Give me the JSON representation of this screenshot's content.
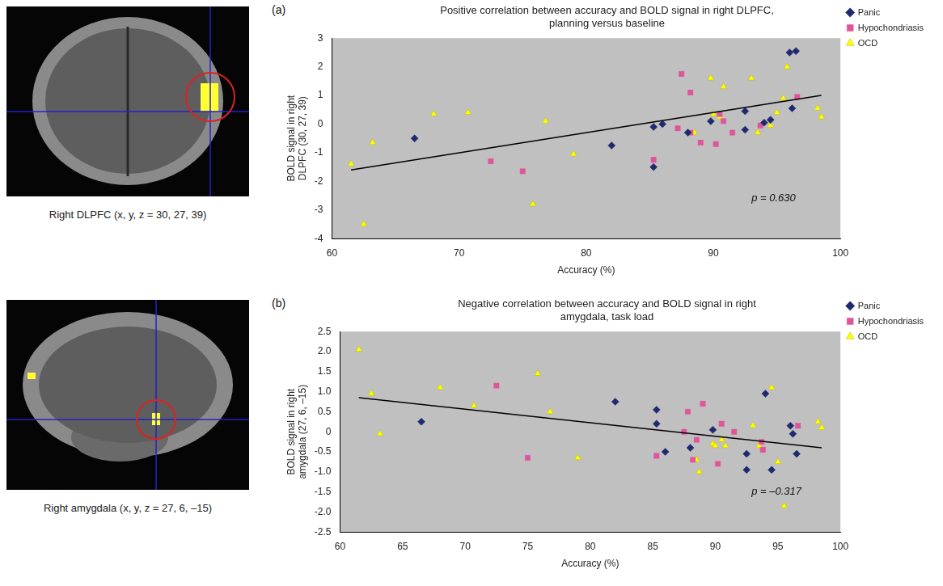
{
  "chart_data": [
    {
      "type": "scatter",
      "panel": "(a)",
      "title": "Positive correlation between accuracy and BOLD signal in right DLPFC, planning versus baseline",
      "x_label": "Accuracy (%)",
      "y_label": "BOLD signal in right DLPFC (30, 27, 39)",
      "image_caption": "Right DLPFC (x, y, z = 30, 27, 39)",
      "annotation": "p = 0.630",
      "xlim": [
        60,
        100
      ],
      "xticks": [
        60,
        70,
        80,
        90,
        100
      ],
      "ylim": [
        -4,
        3
      ],
      "yticks": [
        -4,
        -3,
        -2,
        -1,
        0,
        1,
        2,
        3
      ],
      "grid": false,
      "legend": "right",
      "trend_line": {
        "x": [
          61.5,
          98.5
        ],
        "y": [
          -1.6,
          1.0
        ]
      },
      "series": [
        {
          "name": "Panic",
          "color": "#1f2a6e",
          "marker": "diamond",
          "x": [
            66.5,
            82,
            85.3,
            85.3,
            86,
            88,
            89.8,
            92.5,
            92.5,
            94,
            94.5,
            96,
            96.5,
            96.2
          ],
          "values": [
            -0.5,
            -0.75,
            -1.5,
            -0.1,
            0,
            -0.3,
            0.1,
            0.45,
            -0.2,
            0.05,
            0.15,
            2.5,
            2.55,
            0.55
          ]
        },
        {
          "name": "Hypochondriasis",
          "color": "#e0559a",
          "marker": "square",
          "x": [
            72.5,
            75,
            85.3,
            87.5,
            87.2,
            88.2,
            88.2,
            89,
            90.2,
            90.5,
            90.8,
            91.5,
            93.7,
            96.6
          ],
          "values": [
            -1.3,
            -1.65,
            -1.25,
            1.75,
            -0.15,
            1.1,
            -0.3,
            -0.65,
            -0.7,
            0.35,
            0.1,
            -0.3,
            -0.05,
            0.95
          ]
        },
        {
          "name": "OCD",
          "color": "#ffff00",
          "marker": "triangle",
          "x": [
            61.5,
            62.5,
            63.2,
            68,
            70.7,
            76.8,
            75.8,
            79,
            88.5,
            89.8,
            90,
            90.5,
            90.8,
            93,
            93.5,
            94.5,
            95,
            95.5,
            95.8,
            98.2,
            98.5
          ],
          "values": [
            -1.4,
            -3.5,
            -0.65,
            0.35,
            0.4,
            0.1,
            -2.8,
            -1.05,
            -0.3,
            1.6,
            0.35,
            0.25,
            1.3,
            1.6,
            -0.3,
            -0.05,
            0.4,
            0.9,
            2.0,
            0.55,
            0.25
          ]
        }
      ]
    },
    {
      "type": "scatter",
      "panel": "(b)",
      "title": "Negative correlation between accuracy and BOLD signal in right amygdala, task load",
      "x_label": "Accuracy (%)",
      "y_label": "BOLD signal in right amygdala (27, 6, –15)",
      "image_caption": "Right amygdala (x, y, z = 27, 6, –15)",
      "annotation": "p = –0.317",
      "xlim": [
        60,
        100
      ],
      "xticks": [
        60,
        65,
        70,
        75,
        80,
        85,
        90,
        95,
        100
      ],
      "ylim": [
        -2.5,
        2.5
      ],
      "yticks": [
        -2.5,
        {
          "value": -2,
          "label": "-2.0"
        },
        -1.5,
        {
          "value": -1,
          "label": "-1.0"
        },
        -0.5,
        0,
        0.5,
        {
          "value": 1,
          "label": "1.0"
        },
        1.5,
        {
          "value": 2,
          "label": "2.0"
        },
        2.5
      ],
      "grid": false,
      "legend": "right",
      "trend_line": {
        "x": [
          61.5,
          98.5
        ],
        "y": [
          0.85,
          -0.4
        ]
      },
      "series": [
        {
          "name": "Panic",
          "color": "#1f2a6e",
          "marker": "diamond",
          "x": [
            66.5,
            82,
            85.3,
            85.3,
            86,
            88,
            89.8,
            92.5,
            92.5,
            94,
            94.5,
            96,
            96.2,
            96.5
          ],
          "values": [
            0.25,
            0.75,
            0.55,
            0.2,
            -0.5,
            -0.4,
            0.05,
            -0.55,
            -0.95,
            0.95,
            -0.95,
            0.15,
            -0.05,
            -0.55
          ]
        },
        {
          "name": "Hypochondriasis",
          "color": "#e0559a",
          "marker": "square",
          "x": [
            72.5,
            75,
            85.3,
            87.5,
            87.8,
            88.2,
            88.5,
            89,
            90.2,
            90.5,
            91.5,
            93.7,
            93.8,
            96.6
          ],
          "values": [
            1.15,
            -0.65,
            -0.6,
            0.0,
            0.5,
            -0.7,
            -0.2,
            0.7,
            -0.8,
            0.2,
            0.0,
            -0.25,
            -0.45,
            0.15
          ]
        },
        {
          "name": "OCD",
          "color": "#ffff00",
          "marker": "triangle",
          "x": [
            61.5,
            62.5,
            63.2,
            68,
            70.7,
            75.8,
            76.8,
            79,
            88.5,
            88.7,
            89.8,
            90,
            90.5,
            90.8,
            93,
            93.5,
            94.5,
            95,
            95.5,
            98.2,
            98.5
          ],
          "values": [
            2.05,
            0.95,
            -0.05,
            1.1,
            0.65,
            1.45,
            0.5,
            -0.65,
            -0.7,
            -1.0,
            -0.3,
            -0.35,
            -0.2,
            -0.35,
            0.15,
            -0.35,
            1.1,
            -0.75,
            -1.85,
            0.25,
            0.1
          ]
        }
      ]
    }
  ]
}
